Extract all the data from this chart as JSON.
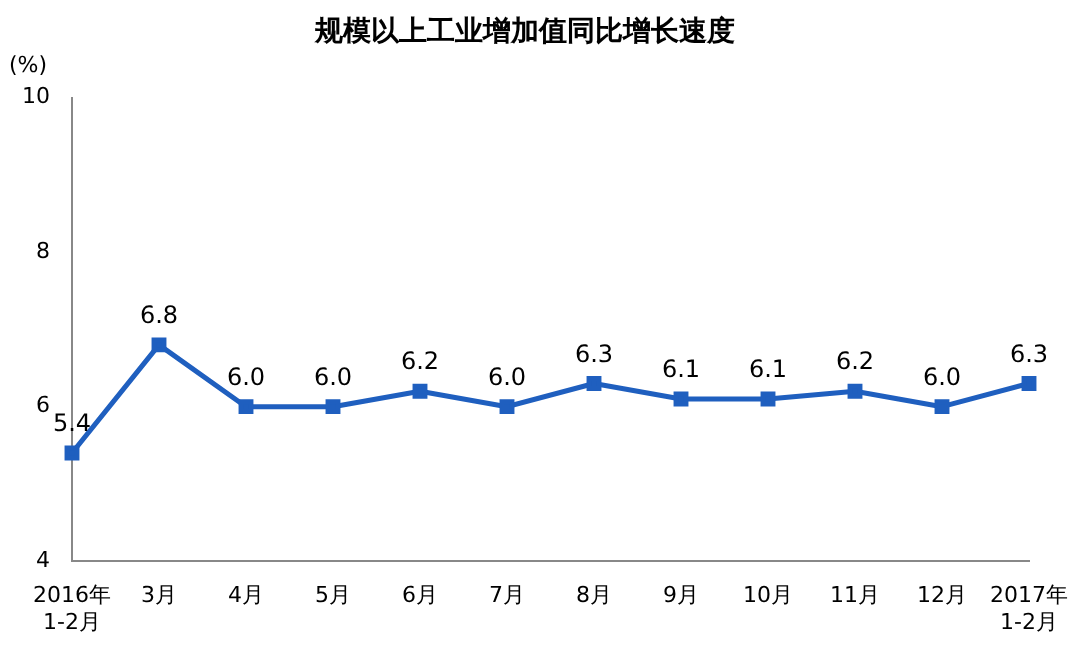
{
  "chart_data": {
    "type": "line",
    "title": "规模以上工业增加值同比增长速度",
    "ylabel": "(%)",
    "categories": [
      "2016年\n1-2月",
      "3月",
      "4月",
      "5月",
      "6月",
      "7月",
      "8月",
      "9月",
      "10月",
      "11月",
      "12月",
      "2017年\n1-2月"
    ],
    "series": [
      {
        "color": "#1f5fbf",
        "values": [
          5.4,
          6.8,
          6.0,
          6.0,
          6.2,
          6.0,
          6.3,
          6.1,
          6.1,
          6.2,
          6.0,
          6.3
        ],
        "value_labels": [
          "5.4",
          "6.8",
          "6.0",
          "6.0",
          "6.2",
          "6.0",
          "6.3",
          "6.1",
          "6.1",
          "6.2",
          "6.0",
          "6.3"
        ]
      }
    ],
    "ylim": [
      4,
      10
    ],
    "yticks": [
      4,
      6,
      8,
      10
    ],
    "grid": false,
    "legend": false,
    "marker": "square",
    "line_style": "solid"
  }
}
